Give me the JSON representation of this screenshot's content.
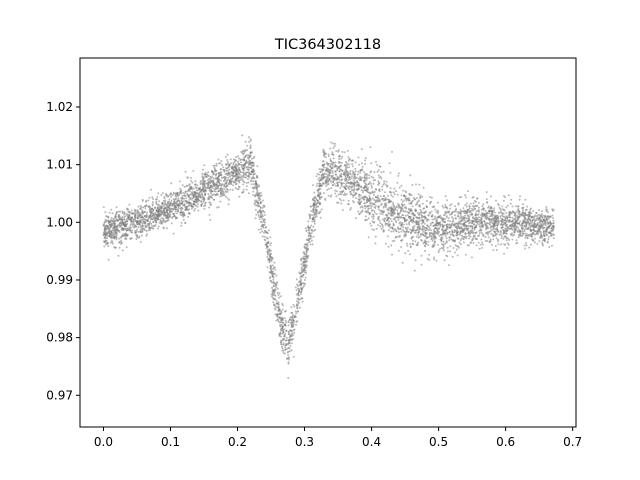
{
  "chart_data": {
    "type": "scatter",
    "title": "TIC364302118",
    "xlabel": "",
    "ylabel": "",
    "xlim": [
      -0.035,
      0.705
    ],
    "ylim": [
      0.9645,
      1.0285
    ],
    "x_ticks": [
      0.0,
      0.1,
      0.2,
      0.3,
      0.4,
      0.5,
      0.6,
      0.7
    ],
    "x_tick_labels": [
      "0.0",
      "0.1",
      "0.2",
      "0.3",
      "0.4",
      "0.5",
      "0.6",
      "0.7"
    ],
    "y_ticks": [
      0.97,
      0.98,
      0.99,
      1.0,
      1.01,
      1.02
    ],
    "y_tick_labels": [
      "0.97",
      "0.98",
      "0.99",
      "1.00",
      "1.01",
      "1.02"
    ],
    "grid": false,
    "legend": "none",
    "marker_color": "#808080",
    "series": [
      {
        "phase": [
          0.0,
          0.05,
          0.1,
          0.15,
          0.2,
          0.22,
          0.24,
          0.26,
          0.275,
          0.29,
          0.31,
          0.33,
          0.35,
          0.4,
          0.45,
          0.5,
          0.55,
          0.6,
          0.65,
          0.672
        ],
        "flux_center": [
          0.9985,
          1.0,
          1.0025,
          1.0055,
          1.0085,
          1.01,
          0.999,
          0.985,
          0.978,
          0.986,
          1.0,
          1.009,
          1.0085,
          1.004,
          1.001,
          0.9985,
          1.0,
          1.0,
          0.9995,
          0.999
        ],
        "flux_spread": [
          0.003,
          0.003,
          0.003,
          0.0033,
          0.0035,
          0.004,
          0.004,
          0.004,
          0.004,
          0.004,
          0.004,
          0.004,
          0.004,
          0.005,
          0.0055,
          0.0045,
          0.004,
          0.0035,
          0.003,
          0.003
        ]
      }
    ]
  }
}
